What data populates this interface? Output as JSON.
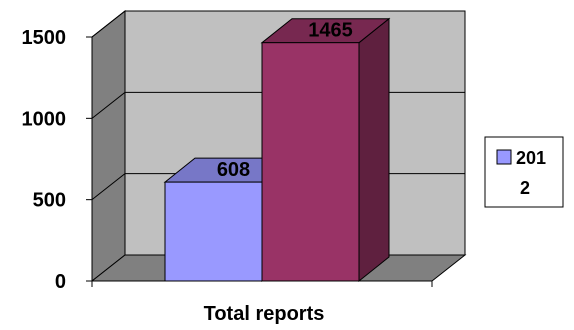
{
  "chart_data": {
    "type": "bar",
    "style": "3d",
    "categories": [
      "Total reports"
    ],
    "series": [
      {
        "values": [
          608
        ],
        "color": "#9999ff"
      },
      {
        "values": [
          1465
        ],
        "color": "#993366"
      }
    ],
    "data_labels": [
      "608",
      "1465"
    ],
    "xlabel": "Total reports",
    "ylabel": "",
    "ylim": [
      0,
      1500
    ],
    "yticks": [
      0,
      500,
      1000,
      1500
    ],
    "ytick_labels": [
      "0",
      "500",
      "1000",
      "1500"
    ],
    "grid": true,
    "legend": {
      "position": "right",
      "entries": [
        {
          "text_line1": "201",
          "text_line2": "2",
          "color": "#9999ff"
        }
      ]
    },
    "colors": {
      "wall": "#c0c0c0",
      "side_wall": "#808080",
      "floor": "#808080",
      "gridline": "#000000"
    }
  }
}
